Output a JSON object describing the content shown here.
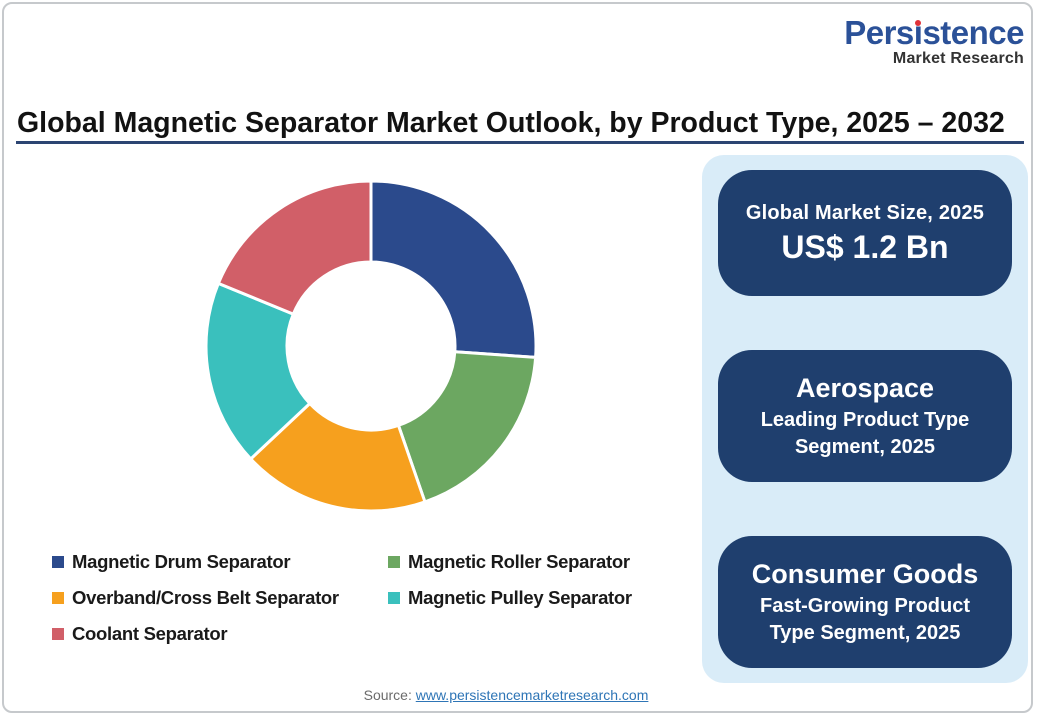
{
  "brand": {
    "name": "Persistence",
    "name_dot_index": 4,
    "tagline": "Market Research",
    "blue": "#2b5198",
    "red": "#e03238",
    "dark": "#333333"
  },
  "title": "Global Magnetic Separator Market Outlook, by Product Type, 2025 – 2032",
  "chart_data": {
    "type": "pie",
    "subtype": "donut",
    "title": "Global Magnetic Separator Market Outlook, by Product Type, 2025 – 2032",
    "start_angle_deg": 0,
    "inner_radius_ratio": 0.51,
    "legend_position": "bottom-left",
    "segments": [
      {
        "label": "Magnetic Drum Separator",
        "value": 26.1,
        "color": "#2b4a8c"
      },
      {
        "label": "Magnetic Roller Separator",
        "value": 18.6,
        "color": "#6ca761"
      },
      {
        "label": "Overband/Cross Belt Separator",
        "value": 18.3,
        "color": "#f6a01e"
      },
      {
        "label": "Magnetic Pulley Separator",
        "value": 18.2,
        "color": "#3ac0bd"
      },
      {
        "label": "Coolant Separator",
        "value": 18.8,
        "color": "#d15f68"
      }
    ]
  },
  "highlights": {
    "panel_bg": "#d9ecf8",
    "box_bg": "#1f3f6e",
    "boxes": [
      {
        "title": "Global Market Size, 2025",
        "value": "US$ 1.2 Bn"
      },
      {
        "title": "Aerospace",
        "subtitle": "Leading Product Type Segment, 2025"
      },
      {
        "title": "Consumer Goods",
        "subtitle": "Fast-Growing Product Type Segment, 2025"
      }
    ]
  },
  "source": {
    "prefix": "Source: ",
    "link": "www.persistencemarketresearch.com"
  }
}
